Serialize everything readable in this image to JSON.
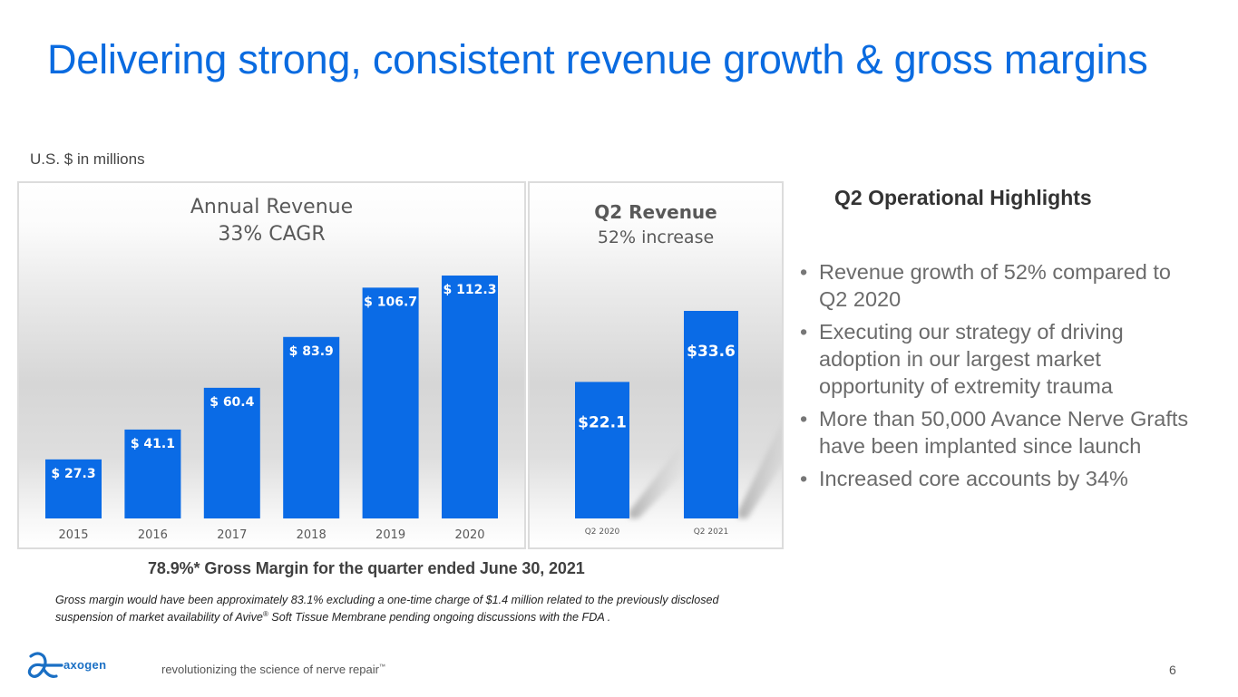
{
  "slide": {
    "title": "Delivering strong, consistent revenue growth & gross margins",
    "units_note": "U.S. $ in millions",
    "page_number": "6"
  },
  "chart_data": [
    {
      "type": "bar",
      "title": "Annual Revenue",
      "subtitle": "33% CAGR",
      "categories": [
        "2015",
        "2016",
        "2017",
        "2018",
        "2019",
        "2020"
      ],
      "values": [
        27.3,
        41.1,
        60.4,
        83.9,
        106.7,
        112.3
      ],
      "data_labels": [
        "$ 27.3",
        "$ 41.1",
        "$ 60.4",
        "$ 83.9",
        "$ 106.7",
        "$ 112.3"
      ],
      "xlabel": "",
      "ylabel": "",
      "ylim": [
        0,
        130
      ],
      "grid": false,
      "legend": "none",
      "bar_color": "#0a6be6"
    },
    {
      "type": "bar",
      "title": "Q2 Revenue",
      "subtitle": "52% increase",
      "categories": [
        "Q2 2020",
        "Q2 2021"
      ],
      "values": [
        22.1,
        33.6
      ],
      "data_labels": [
        "$22.1",
        "$33.6"
      ],
      "xlabel": "",
      "ylabel": "",
      "ylim": [
        0,
        45
      ],
      "grid": false,
      "legend": "none",
      "bar_color": "#0a6be6"
    }
  ],
  "highlights": {
    "title": "Q2 Operational Highlights",
    "items": [
      "Revenue growth of 52% compared to Q2 2020",
      "Executing our strategy of driving adoption in our largest market opportunity of extremity trauma",
      "More than 50,000 Avance Nerve Grafts have been implanted since launch",
      "Increased core accounts by 34%"
    ]
  },
  "gross_margin": {
    "headline": "78.9%* Gross Margin for the quarter ended June 30, 2021",
    "footnote_part1": "Gross margin would have been approximately 83.1% excluding a one-time charge of $1.4 million related to the previously disclosed suspension of market availability of Avive",
    "footnote_reg": "®",
    "footnote_part2": " Soft Tissue Membrane pending ongoing discussions with the FDA ."
  },
  "footer": {
    "logo_text": "axogen",
    "tagline": "revolutionizing the science of nerve repair",
    "tagline_tm": "™"
  }
}
